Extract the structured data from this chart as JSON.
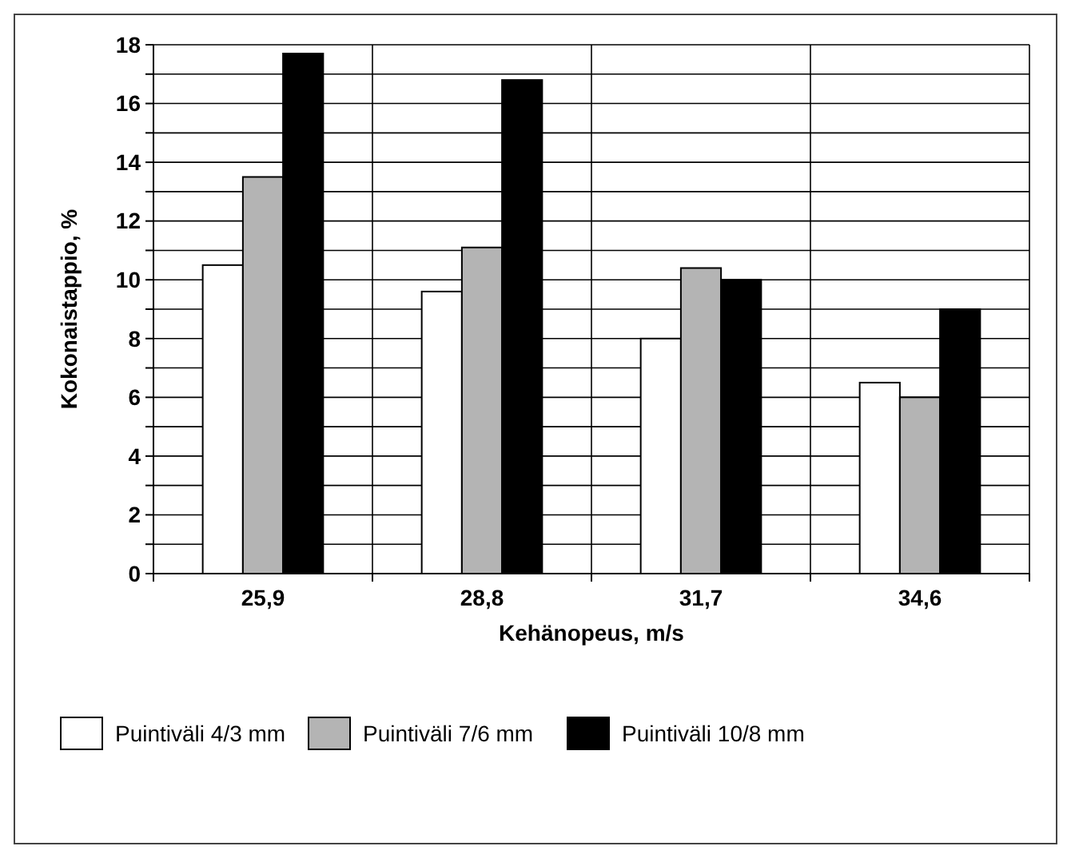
{
  "chart_data": {
    "type": "bar",
    "xlabel": "Kehänopeus, m/s",
    "ylabel": "Kokonaistappio, %",
    "categories": [
      "25,9",
      "28,8",
      "31,7",
      "34,6"
    ],
    "series": [
      {
        "name": "Puintiväli 4/3 mm",
        "color": "#ffffff",
        "values": [
          10.5,
          9.6,
          8.0,
          6.5
        ]
      },
      {
        "name": "Puintiväli 7/6 mm",
        "color": "#b4b4b4",
        "values": [
          13.5,
          11.1,
          10.4,
          6.0
        ]
      },
      {
        "name": "Puintiväli 10/8 mm",
        "color": "#000000",
        "values": [
          17.7,
          16.8,
          10.0,
          9.0
        ]
      }
    ],
    "ylim": [
      0,
      18
    ],
    "yticks": [
      0,
      {
        "value": 1,
        "label": null
      },
      2,
      {
        "value": 3,
        "label": null
      },
      4,
      {
        "value": 5,
        "label": null
      },
      6,
      {
        "value": 7,
        "label": null
      },
      8,
      {
        "value": 9,
        "label": null
      },
      10,
      {
        "value": 11,
        "label": null
      },
      12,
      {
        "value": 13,
        "label": null
      },
      14,
      {
        "value": 15,
        "label": null
      },
      16,
      {
        "value": 17,
        "label": null
      },
      18
    ],
    "grid": true,
    "legend": "bottom"
  }
}
